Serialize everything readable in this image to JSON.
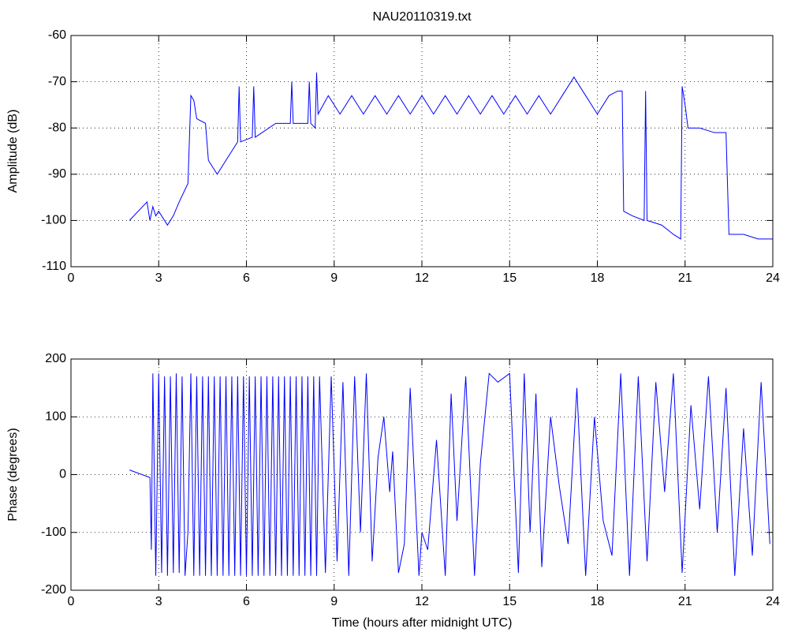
{
  "chart_data": [
    {
      "type": "line",
      "title": "NAU20110319.txt",
      "y_label": "Amplitude (dB)",
      "grid": true,
      "xlim": [
        0,
        24
      ],
      "xticks": [
        0,
        3,
        6,
        9,
        12,
        15,
        18,
        21,
        24
      ],
      "ylim": [
        -110,
        -60
      ],
      "yticks": [
        -110,
        -100,
        -90,
        -80,
        -70,
        -60
      ],
      "x": [
        2.0,
        2.6,
        2.7,
        2.8,
        2.9,
        3.0,
        3.3,
        3.5,
        3.7,
        4.0,
        4.1,
        4.2,
        4.3,
        4.6,
        4.7,
        5.0,
        5.5,
        5.7,
        5.75,
        5.8,
        6.2,
        6.25,
        6.3,
        7.0,
        7.5,
        7.55,
        7.6,
        8.1,
        8.15,
        8.2,
        8.35,
        8.4,
        8.45,
        8.8,
        9.2,
        9.6,
        10.0,
        10.4,
        10.8,
        11.2,
        11.6,
        12.0,
        12.4,
        12.8,
        13.2,
        13.6,
        14.0,
        14.4,
        14.8,
        15.2,
        15.6,
        16.0,
        16.4,
        16.8,
        17.2,
        17.6,
        18.0,
        18.4,
        18.7,
        18.85,
        18.9,
        19.2,
        19.6,
        19.65,
        19.7,
        20.2,
        20.6,
        20.85,
        20.9,
        21.0,
        21.1,
        21.5,
        22.0,
        22.4,
        22.5,
        23.0,
        23.5,
        24
      ],
      "series": [
        {
          "color": "#0000ff",
          "values": [
            -100,
            -96,
            -100,
            -97,
            -99,
            -98,
            -101,
            -99,
            -96,
            -92,
            -73,
            -74,
            -78,
            -79,
            -87,
            -90,
            -85,
            -83,
            -71,
            -83,
            -82,
            -71,
            -82,
            -79,
            -79,
            -70,
            -79,
            -79,
            -70,
            -79,
            -80,
            -68,
            -77,
            -73,
            -77,
            -73,
            -77,
            -73,
            -77,
            -73,
            -77,
            -73,
            -77,
            -73,
            -77,
            -73,
            -77,
            -73,
            -77,
            -73,
            -77,
            -73,
            -77,
            -73,
            -69,
            -73,
            -77,
            -73,
            -72,
            -72,
            -98,
            -99,
            -100,
            -72,
            -100,
            -101,
            -103,
            -104,
            -71,
            -75,
            -80,
            -80,
            -81,
            -81,
            -103,
            -103,
            -104,
            -104
          ]
        }
      ]
    },
    {
      "type": "line",
      "x_label": "Time (hours after midnight UTC)",
      "y_label": "Phase (degrees)",
      "grid": true,
      "xlim": [
        0,
        24
      ],
      "xticks": [
        0,
        3,
        6,
        9,
        12,
        15,
        18,
        21,
        24
      ],
      "ylim": [
        -200,
        200
      ],
      "yticks": [
        -200,
        -100,
        0,
        100,
        200
      ],
      "x": [
        2.0,
        2.7,
        2.75,
        2.8,
        2.9,
        3.0,
        3.1,
        3.2,
        3.3,
        3.4,
        3.5,
        3.6,
        3.7,
        3.8,
        3.9,
        4.0,
        4.1,
        4.2,
        4.3,
        4.4,
        4.5,
        4.6,
        4.7,
        4.8,
        4.9,
        5.0,
        5.1,
        5.2,
        5.3,
        5.4,
        5.5,
        5.6,
        5.7,
        5.8,
        5.9,
        6.0,
        6.1,
        6.2,
        6.3,
        6.4,
        6.5,
        6.6,
        6.7,
        6.8,
        6.9,
        7.0,
        7.1,
        7.2,
        7.3,
        7.4,
        7.5,
        7.6,
        7.7,
        7.8,
        7.9,
        8.0,
        8.1,
        8.2,
        8.3,
        8.4,
        8.5,
        8.7,
        8.9,
        9.1,
        9.3,
        9.5,
        9.7,
        9.9,
        10.1,
        10.3,
        10.5,
        10.7,
        10.9,
        11.0,
        11.2,
        11.4,
        11.6,
        11.9,
        12.0,
        12.2,
        12.5,
        12.8,
        13.0,
        13.2,
        13.5,
        13.8,
        14.0,
        14.3,
        14.6,
        15.0,
        15.3,
        15.5,
        15.7,
        15.9,
        16.1,
        16.4,
        16.7,
        17.0,
        17.3,
        17.6,
        17.9,
        18.2,
        18.5,
        18.8,
        19.1,
        19.4,
        19.7,
        20.0,
        20.3,
        20.6,
        20.9,
        21.2,
        21.5,
        21.8,
        22.1,
        22.4,
        22.7,
        23.0,
        23.3,
        23.6,
        23.9
      ],
      "series": [
        {
          "color": "#0000ff",
          "values": [
            8,
            -5,
            -130,
            175,
            -175,
            175,
            -170,
            170,
            -175,
            170,
            -170,
            175,
            -170,
            170,
            -175,
            -100,
            175,
            -175,
            170,
            -175,
            170,
            -175,
            170,
            -175,
            170,
            -175,
            170,
            -175,
            170,
            -175,
            170,
            -175,
            170,
            -175,
            170,
            -175,
            170,
            -175,
            170,
            -175,
            170,
            -175,
            170,
            -175,
            170,
            -175,
            170,
            -175,
            170,
            -175,
            170,
            -175,
            170,
            -175,
            170,
            -175,
            170,
            -175,
            170,
            -175,
            170,
            -170,
            170,
            -150,
            160,
            -175,
            170,
            -100,
            175,
            -150,
            30,
            100,
            -30,
            40,
            -170,
            -120,
            150,
            -175,
            -100,
            -130,
            60,
            -175,
            140,
            -80,
            170,
            -175,
            20,
            175,
            160,
            175,
            -170,
            175,
            -100,
            140,
            -160,
            100,
            -20,
            -120,
            150,
            -175,
            100,
            -80,
            -140,
            175,
            -175,
            170,
            -150,
            160,
            -30,
            175,
            -170,
            120,
            -60,
            170,
            -100,
            150,
            -175,
            80,
            -140,
            160,
            -120
          ]
        }
      ]
    }
  ]
}
